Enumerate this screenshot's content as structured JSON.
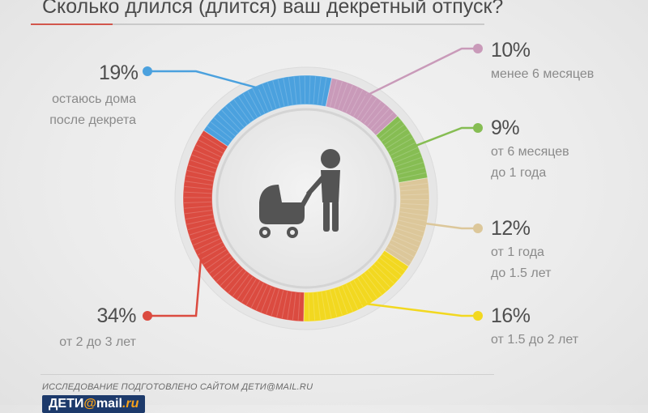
{
  "title": "Сколько длился (длится) ваш декретный отпуск?",
  "chart_data": {
    "type": "pie",
    "title": "Сколько длился (длится) ваш декретный отпуск?",
    "series": [
      {
        "name": "менее 6 месяцев",
        "value": 10,
        "label": "10%",
        "desc": [
          "менее 6 месяцев"
        ],
        "color": "#c99ab9",
        "side": "right"
      },
      {
        "name": "от 6 месяцев до 1 года",
        "value": 9,
        "label": "9%",
        "desc": [
          "от 6 месяцев",
          "до 1 года"
        ],
        "color": "#86bd53",
        "side": "right"
      },
      {
        "name": "от 1 года до 1.5 лет",
        "value": 12,
        "label": "12%",
        "desc": [
          "от 1 года",
          "до 1.5 лет"
        ],
        "color": "#dcc79a",
        "side": "right"
      },
      {
        "name": "от 1.5 до 2 лет",
        "value": 16,
        "label": "16%",
        "desc": [
          "от 1.5 до 2 лет"
        ],
        "color": "#f2d820",
        "side": "right"
      },
      {
        "name": "от 2 до 3 лет",
        "value": 34,
        "label": "34%",
        "desc": [
          "от 2 до 3 лет"
        ],
        "color": "#db4b40",
        "side": "left"
      },
      {
        "name": "остаюсь дома после декрета",
        "value": 19,
        "label": "19%",
        "desc": [
          "остаюсь дома",
          "после декрета"
        ],
        "color": "#4ba1de",
        "side": "left"
      }
    ]
  },
  "footer": {
    "note": "Исследование подготовлено сайтом дети@mail.ru",
    "logo_main": "ДЕТИ",
    "logo_at": "@",
    "logo_mail": "mail",
    "logo_ru": ".ru"
  },
  "icon": "mother-with-stroller-icon"
}
